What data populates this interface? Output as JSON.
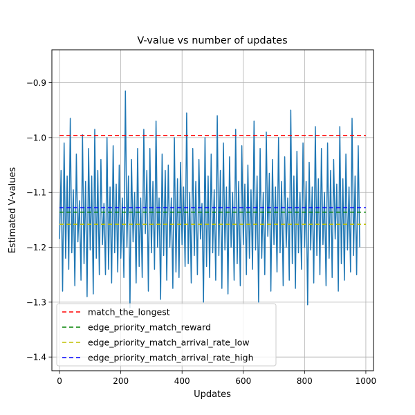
{
  "chart_data": {
    "type": "line",
    "title": "V-value vs number of updates",
    "xlabel": "Updates",
    "ylabel": "Estimated V-values",
    "xlim": [
      -25,
      1025
    ],
    "ylim": [
      -1.425,
      -0.84
    ],
    "xticks": [
      0,
      200,
      400,
      600,
      800,
      1000
    ],
    "xtick_labels": [
      "0",
      "200",
      "400",
      "600",
      "800",
      "1000"
    ],
    "yticks": [
      -1.4,
      -1.3,
      -1.2,
      -1.1,
      -1.0,
      -0.9
    ],
    "ytick_labels": [
      "−1.4",
      "−1.3",
      "−1.2",
      "−1.1",
      "−1.0",
      "−0.9"
    ],
    "grid": true,
    "legend_position": "lower-left",
    "series": [
      {
        "kind": "line",
        "color": "#1f77b4",
        "x_start": 0,
        "x_step": 5,
        "y": [
          -1.185,
          -1.06,
          -1.28,
          -1.01,
          -1.22,
          -1.07,
          -1.24,
          -0.965,
          -1.21,
          -1.095,
          -1.27,
          -1.03,
          -1.19,
          -1.115,
          -1.26,
          -0.995,
          -1.23,
          -1.08,
          -1.29,
          -1.02,
          -1.205,
          -1.07,
          -1.285,
          -0.985,
          -1.22,
          -1.06,
          -1.25,
          -1.04,
          -1.195,
          -1.12,
          -1.25,
          -1.0,
          -1.24,
          -1.09,
          -1.265,
          -1.015,
          -1.21,
          -1.085,
          -1.245,
          -1.05,
          -1.22,
          -1.11,
          -1.255,
          -0.915,
          -1.2,
          -1.07,
          -1.31,
          -1.04,
          -1.19,
          -1.1,
          -1.265,
          -1.02,
          -1.235,
          -1.11,
          -1.255,
          -0.985,
          -1.175,
          -1.06,
          -1.28,
          -1.02,
          -1.21,
          -1.08,
          -1.24,
          -0.97,
          -1.2,
          -1.11,
          -1.295,
          -1.03,
          -1.215,
          -1.06,
          -1.26,
          -1.05,
          -1.2,
          -1.11,
          -1.275,
          -1.0,
          -1.245,
          -1.075,
          -1.255,
          -1.045,
          -1.195,
          -1.09,
          -1.235,
          -0.955,
          -1.23,
          -1.1,
          -1.265,
          -1.02,
          -1.215,
          -1.08,
          -1.25,
          -1.04,
          -1.185,
          -1.12,
          -1.3,
          -1.0,
          -1.235,
          -1.07,
          -1.255,
          -1.03,
          -1.21,
          -1.095,
          -1.26,
          -0.96,
          -1.215,
          -1.06,
          -1.275,
          -1.01,
          -1.205,
          -1.09,
          -1.285,
          -1.035,
          -1.2,
          -1.1,
          -1.26,
          -0.985,
          -1.23,
          -1.08,
          -1.27,
          -1.015,
          -1.195,
          -1.085,
          -1.25,
          -1.05,
          -1.22,
          -1.095,
          -1.24,
          -0.97,
          -1.205,
          -1.07,
          -1.3,
          -1.02,
          -1.22,
          -1.1,
          -1.25,
          -0.99,
          -1.18,
          -1.065,
          -1.28,
          -1.04,
          -1.195,
          -1.09,
          -1.245,
          -1.0,
          -1.21,
          -1.08,
          -1.27,
          -1.035,
          -1.2,
          -1.11,
          -1.26,
          -0.95,
          -1.23,
          -1.07,
          -1.275,
          -1.025,
          -1.21,
          -1.1,
          -1.24,
          -1.01,
          -1.2,
          -1.08,
          -1.305,
          -1.045,
          -1.205,
          -1.09,
          -1.265,
          -0.98,
          -1.215,
          -1.075,
          -1.25,
          -1.02,
          -1.195,
          -1.1,
          -1.27,
          -1.01,
          -1.22,
          -1.06,
          -1.255,
          -1.04,
          -1.185,
          -1.085,
          -1.28,
          -0.98,
          -1.23,
          -1.075,
          -1.26,
          -1.03,
          -1.205,
          -1.09,
          -1.245,
          -0.965,
          -1.215,
          -1.07,
          -1.25,
          -1.015,
          -1.2
        ]
      }
    ],
    "reference_lines": [
      {
        "name": "match_the_longest",
        "y": -0.996,
        "color": "#ff0000",
        "style": "dashed"
      },
      {
        "name": "edge_priority_match_reward",
        "y": -1.136,
        "color": "#008000",
        "style": "dashed"
      },
      {
        "name": "edge_priority_match_arrival_rate_low",
        "y": -1.158,
        "color": "#bfbf00",
        "style": "dashed"
      },
      {
        "name": "edge_priority_match_arrival_rate_high",
        "y": -1.128,
        "color": "#0000ff",
        "style": "dashed"
      }
    ]
  }
}
